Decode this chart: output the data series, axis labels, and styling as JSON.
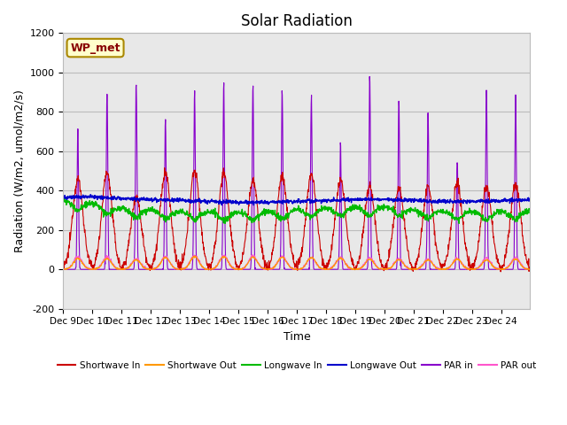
{
  "title": "Solar Radiation",
  "ylabel": "Radiation (W/m2, umol/m2/s)",
  "xlabel": "Time",
  "ylim": [
    -200,
    1200
  ],
  "xlim": [
    0,
    16
  ],
  "xtick_labels": [
    "Dec 9",
    "Dec 10",
    "Dec 11",
    "Dec 12",
    "Dec 13",
    "Dec 14",
    "Dec 15",
    "Dec 16",
    "Dec 17",
    "Dec 18",
    "Dec 19",
    "Dec 20",
    "Dec 21",
    "Dec 22",
    "Dec 23",
    "Dec 24"
  ],
  "ytick_values": [
    -200,
    0,
    200,
    400,
    600,
    800,
    1000,
    1200
  ],
  "plot_bg_color": "#e8e8e8",
  "annotation_text": "WP_met",
  "annotation_bg": "#ffffcc",
  "annotation_border": "#aa8800",
  "series": {
    "shortwave_in": {
      "color": "#cc0000",
      "label": "Shortwave In"
    },
    "shortwave_out": {
      "color": "#ff9900",
      "label": "Shortwave Out"
    },
    "longwave_in": {
      "color": "#00bb00",
      "label": "Longwave In"
    },
    "longwave_out": {
      "color": "#0000cc",
      "label": "Longwave Out"
    },
    "par_in": {
      "color": "#8800cc",
      "label": "PAR in"
    },
    "par_out": {
      "color": "#ff55cc",
      "label": "PAR out"
    }
  },
  "grid_color": "#cccccc",
  "title_fontsize": 12,
  "axis_fontsize": 9,
  "sw_in_peaks": [
    460,
    490,
    370,
    490,
    500,
    490,
    450,
    470,
    480,
    450,
    420,
    410,
    420,
    430,
    420,
    430
  ],
  "sw_out_peaks": [
    55,
    55,
    48,
    60,
    65,
    65,
    62,
    62,
    60,
    58,
    52,
    50,
    48,
    52,
    48,
    52
  ],
  "par_in_peaks": [
    700,
    900,
    950,
    760,
    900,
    950,
    940,
    930,
    880,
    620,
    1000,
    880,
    800,
    570,
    910,
    870
  ],
  "par_out_peaks": [
    65,
    65,
    55,
    65,
    70,
    70,
    68,
    65,
    60,
    60,
    58,
    55,
    52,
    55,
    58,
    60
  ],
  "lw_in_base": [
    350,
    335,
    310,
    305,
    295,
    295,
    290,
    295,
    305,
    310,
    315,
    320,
    305,
    295,
    295,
    295,
    300
  ],
  "lw_out_base": [
    365,
    370,
    360,
    355,
    350,
    345,
    340,
    340,
    345,
    350,
    355,
    355,
    350,
    345,
    345,
    350,
    355
  ]
}
